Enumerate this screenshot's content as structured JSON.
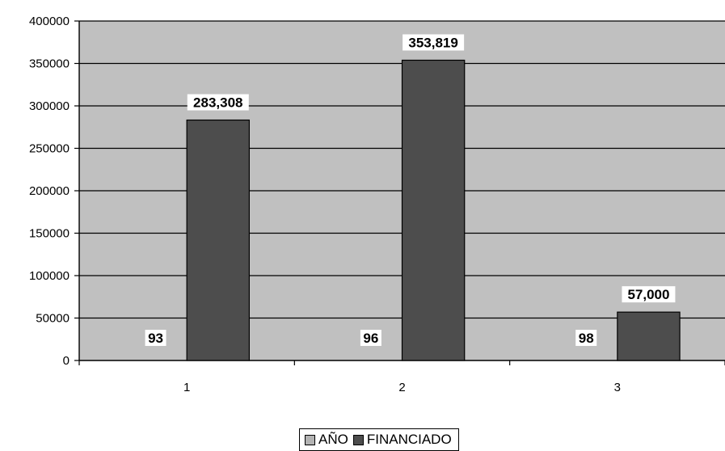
{
  "chart_data": {
    "type": "bar",
    "title": "",
    "xlabel": "",
    "ylabel": "",
    "categories": [
      "1",
      "2",
      "3"
    ],
    "ylim": [
      0,
      400000
    ],
    "yticks": [
      "0",
      "50000",
      "100000",
      "150000",
      "200000",
      "250000",
      "300000",
      "350000",
      "400000"
    ],
    "grid": true,
    "legend_position": "bottom",
    "series": [
      {
        "name": "AÑO",
        "values": [
          93,
          96,
          98
        ],
        "labels": [
          "93",
          "96",
          "98"
        ],
        "color": "#b3b3b3"
      },
      {
        "name": "FINANCIADO",
        "values": [
          283308,
          353819,
          57000
        ],
        "labels": [
          "283,308",
          "353,819",
          "57,000"
        ],
        "color": "#4d4d4d"
      }
    ],
    "plot_background": "#c0c0c0"
  }
}
